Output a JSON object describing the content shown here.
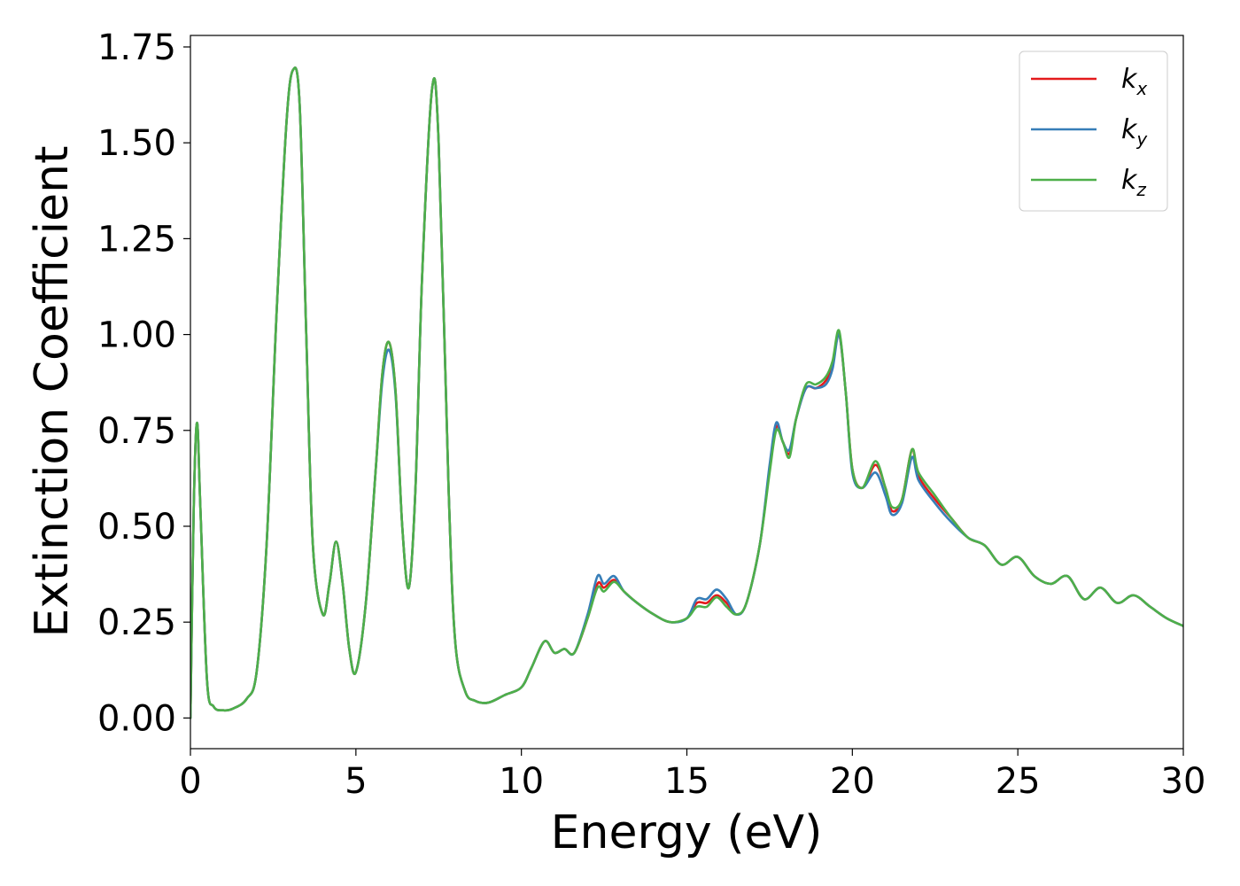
{
  "chart_data": {
    "type": "line",
    "title": "",
    "xlabel": "Energy (eV)",
    "ylabel": "Extinction Coefficient",
    "xlim": [
      0,
      30
    ],
    "ylim": [
      -0.08,
      1.78
    ],
    "x_ticks": [
      0,
      5,
      10,
      15,
      20,
      25,
      30
    ],
    "x_tick_labels": [
      "0",
      "5",
      "10",
      "15",
      "20",
      "25",
      "30"
    ],
    "y_ticks": [
      0,
      0.25,
      0.5,
      0.75,
      1.0,
      1.25,
      1.5,
      1.75
    ],
    "y_tick_labels": [
      "0.00",
      "0.25",
      "0.50",
      "0.75",
      "1.00",
      "1.25",
      "1.50",
      "1.75"
    ],
    "grid": false,
    "legend_position": "top-right",
    "series": [
      {
        "name": "k_x",
        "label_base": "k",
        "label_sub": "x",
        "color": "#e41a1c",
        "x": [
          0,
          0.1,
          0.2,
          0.3,
          0.5,
          0.7,
          1.0,
          1.3,
          1.7,
          2.0,
          2.3,
          2.6,
          2.9,
          3.1,
          3.3,
          3.5,
          3.7,
          4.0,
          4.2,
          4.4,
          4.6,
          4.8,
          5.0,
          5.3,
          5.6,
          5.8,
          6.0,
          6.2,
          6.4,
          6.6,
          6.8,
          7.0,
          7.3,
          7.5,
          7.8,
          8.0,
          8.3,
          8.6,
          9.0,
          9.5,
          10.0,
          10.3,
          10.7,
          11.0,
          11.3,
          11.6,
          12.0,
          12.3,
          12.5,
          12.8,
          13.1,
          13.5,
          14.0,
          14.5,
          15.0,
          15.3,
          15.6,
          15.9,
          16.2,
          16.5,
          16.8,
          17.2,
          17.5,
          17.7,
          17.9,
          18.1,
          18.3,
          18.6,
          18.9,
          19.2,
          19.4,
          19.6,
          19.8,
          20.0,
          20.3,
          20.7,
          21.0,
          21.2,
          21.5,
          21.8,
          22.0,
          22.5,
          23.0,
          23.5,
          24.0,
          24.5,
          25.0,
          25.5,
          26.0,
          26.5,
          27.0,
          27.5,
          28.0,
          28.5,
          29.0,
          29.5,
          30.0
        ],
        "y": [
          0.0,
          0.55,
          0.77,
          0.55,
          0.1,
          0.03,
          0.02,
          0.025,
          0.05,
          0.12,
          0.45,
          1.05,
          1.55,
          1.69,
          1.6,
          1.0,
          0.45,
          0.27,
          0.35,
          0.46,
          0.35,
          0.18,
          0.12,
          0.3,
          0.65,
          0.9,
          0.98,
          0.85,
          0.5,
          0.34,
          0.6,
          1.15,
          1.64,
          1.5,
          0.6,
          0.2,
          0.07,
          0.045,
          0.04,
          0.06,
          0.08,
          0.13,
          0.2,
          0.17,
          0.18,
          0.17,
          0.26,
          0.35,
          0.34,
          0.36,
          0.33,
          0.3,
          0.27,
          0.25,
          0.26,
          0.3,
          0.3,
          0.32,
          0.3,
          0.27,
          0.3,
          0.45,
          0.65,
          0.76,
          0.72,
          0.69,
          0.78,
          0.86,
          0.86,
          0.88,
          0.92,
          1.0,
          0.85,
          0.65,
          0.6,
          0.66,
          0.6,
          0.54,
          0.57,
          0.7,
          0.63,
          0.57,
          0.52,
          0.47,
          0.45,
          0.4,
          0.42,
          0.37,
          0.35,
          0.37,
          0.31,
          0.34,
          0.3,
          0.32,
          0.29,
          0.26,
          0.24
        ]
      },
      {
        "name": "k_y",
        "label_base": "k",
        "label_sub": "y",
        "color": "#377eb8",
        "x": [
          0,
          0.1,
          0.2,
          0.3,
          0.5,
          0.7,
          1.0,
          1.3,
          1.7,
          2.0,
          2.3,
          2.6,
          2.9,
          3.1,
          3.3,
          3.5,
          3.7,
          4.0,
          4.2,
          4.4,
          4.6,
          4.8,
          5.0,
          5.3,
          5.6,
          5.8,
          6.0,
          6.2,
          6.4,
          6.6,
          6.8,
          7.0,
          7.3,
          7.5,
          7.8,
          8.0,
          8.3,
          8.6,
          9.0,
          9.5,
          10.0,
          10.3,
          10.7,
          11.0,
          11.3,
          11.6,
          12.0,
          12.3,
          12.5,
          12.8,
          13.1,
          13.5,
          14.0,
          14.5,
          15.0,
          15.3,
          15.6,
          15.9,
          16.2,
          16.5,
          16.8,
          17.2,
          17.5,
          17.7,
          17.9,
          18.1,
          18.3,
          18.6,
          18.9,
          19.2,
          19.4,
          19.6,
          19.8,
          20.0,
          20.3,
          20.7,
          21.0,
          21.2,
          21.5,
          21.8,
          22.0,
          22.5,
          23.0,
          23.5,
          24.0,
          24.5,
          25.0,
          25.5,
          26.0,
          26.5,
          27.0,
          27.5,
          28.0,
          28.5,
          29.0,
          29.5,
          30.0
        ],
        "y": [
          0.0,
          0.55,
          0.77,
          0.55,
          0.1,
          0.03,
          0.02,
          0.025,
          0.05,
          0.12,
          0.45,
          1.05,
          1.55,
          1.69,
          1.6,
          1.0,
          0.45,
          0.27,
          0.35,
          0.46,
          0.35,
          0.18,
          0.12,
          0.3,
          0.65,
          0.88,
          0.96,
          0.84,
          0.5,
          0.34,
          0.6,
          1.15,
          1.64,
          1.5,
          0.6,
          0.2,
          0.07,
          0.045,
          0.04,
          0.06,
          0.08,
          0.13,
          0.2,
          0.17,
          0.18,
          0.17,
          0.27,
          0.37,
          0.35,
          0.37,
          0.33,
          0.3,
          0.27,
          0.25,
          0.26,
          0.31,
          0.31,
          0.335,
          0.31,
          0.27,
          0.3,
          0.45,
          0.66,
          0.77,
          0.72,
          0.7,
          0.78,
          0.86,
          0.86,
          0.87,
          0.91,
          1.0,
          0.85,
          0.64,
          0.6,
          0.64,
          0.58,
          0.53,
          0.56,
          0.68,
          0.62,
          0.56,
          0.51,
          0.47,
          0.45,
          0.4,
          0.42,
          0.37,
          0.35,
          0.37,
          0.31,
          0.34,
          0.3,
          0.32,
          0.29,
          0.26,
          0.24
        ]
      },
      {
        "name": "k_z",
        "label_base": "k",
        "label_sub": "z",
        "color": "#4daf4a",
        "x": [
          0,
          0.1,
          0.2,
          0.3,
          0.5,
          0.7,
          1.0,
          1.3,
          1.7,
          2.0,
          2.3,
          2.6,
          2.9,
          3.1,
          3.3,
          3.5,
          3.7,
          4.0,
          4.2,
          4.4,
          4.6,
          4.8,
          5.0,
          5.3,
          5.6,
          5.8,
          6.0,
          6.2,
          6.4,
          6.6,
          6.8,
          7.0,
          7.3,
          7.5,
          7.8,
          8.0,
          8.3,
          8.6,
          9.0,
          9.5,
          10.0,
          10.3,
          10.7,
          11.0,
          11.3,
          11.6,
          12.0,
          12.3,
          12.5,
          12.8,
          13.1,
          13.5,
          14.0,
          14.5,
          15.0,
          15.3,
          15.6,
          15.9,
          16.2,
          16.5,
          16.8,
          17.2,
          17.5,
          17.7,
          17.9,
          18.1,
          18.3,
          18.6,
          18.9,
          19.2,
          19.4,
          19.6,
          19.8,
          20.0,
          20.3,
          20.7,
          21.0,
          21.2,
          21.5,
          21.8,
          22.0,
          22.5,
          23.0,
          23.5,
          24.0,
          24.5,
          25.0,
          25.5,
          26.0,
          26.5,
          27.0,
          27.5,
          28.0,
          28.5,
          29.0,
          29.5,
          30.0
        ],
        "y": [
          0.0,
          0.55,
          0.77,
          0.55,
          0.1,
          0.03,
          0.02,
          0.025,
          0.05,
          0.12,
          0.45,
          1.05,
          1.55,
          1.69,
          1.6,
          1.0,
          0.45,
          0.27,
          0.35,
          0.46,
          0.35,
          0.18,
          0.12,
          0.3,
          0.65,
          0.9,
          0.98,
          0.85,
          0.5,
          0.34,
          0.6,
          1.15,
          1.64,
          1.5,
          0.6,
          0.2,
          0.07,
          0.045,
          0.04,
          0.06,
          0.08,
          0.13,
          0.2,
          0.17,
          0.18,
          0.17,
          0.26,
          0.34,
          0.33,
          0.355,
          0.33,
          0.3,
          0.27,
          0.25,
          0.26,
          0.29,
          0.29,
          0.315,
          0.29,
          0.27,
          0.3,
          0.45,
          0.64,
          0.75,
          0.72,
          0.68,
          0.78,
          0.87,
          0.87,
          0.89,
          0.93,
          1.01,
          0.85,
          0.65,
          0.6,
          0.67,
          0.6,
          0.55,
          0.57,
          0.7,
          0.64,
          0.58,
          0.52,
          0.47,
          0.45,
          0.4,
          0.42,
          0.37,
          0.35,
          0.37,
          0.31,
          0.34,
          0.3,
          0.32,
          0.29,
          0.26,
          0.24
        ]
      }
    ]
  }
}
